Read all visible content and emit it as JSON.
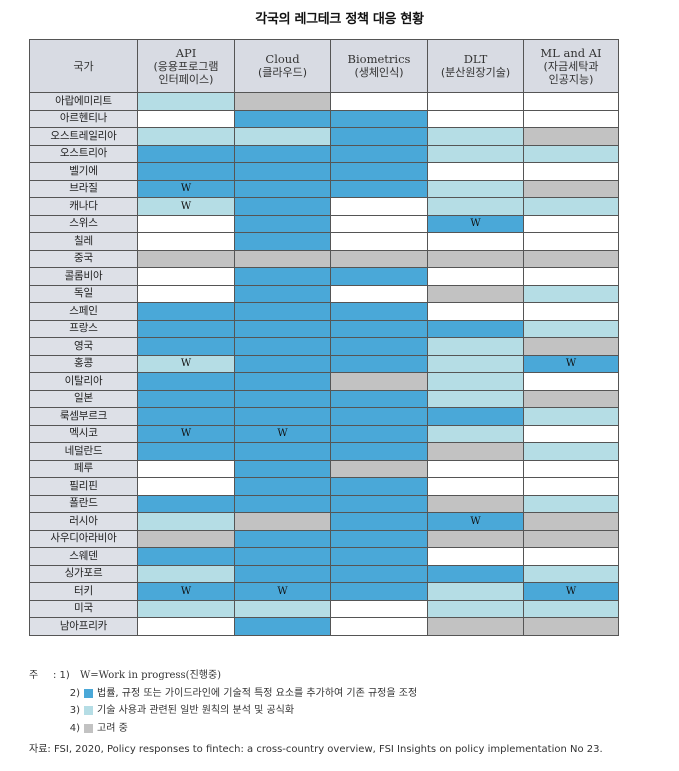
{
  "title": "각국의 레그테크 정책 대응 현황",
  "columns": [
    {
      "en": "",
      "ko": "국가"
    },
    {
      "en": "API",
      "ko": "(응용프로그램\n인터페이스)"
    },
    {
      "en": "Cloud",
      "ko": "(클라우드)"
    },
    {
      "en": "Biometrics",
      "ko": "(생체인식)"
    },
    {
      "en": "DLT",
      "ko": "(분산원장기술)"
    },
    {
      "en": "ML and AI",
      "ko": "(자금세탁과\n인공지능)"
    }
  ],
  "legend_colors": {
    "2": "#4aa8d8",
    "3": "#b5dde5",
    "4": "#c2c2c2",
    "0": "#ffffff"
  },
  "rows": [
    {
      "country": "아랍에미리트",
      "cells": [
        3,
        4,
        0,
        0,
        0
      ],
      "marks": [
        "",
        "",
        "",
        "",
        ""
      ]
    },
    {
      "country": "아르헨티나",
      "cells": [
        0,
        2,
        2,
        0,
        0
      ],
      "marks": [
        "",
        "",
        "",
        "",
        ""
      ]
    },
    {
      "country": "오스트레일리아",
      "cells": [
        3,
        3,
        2,
        3,
        4
      ],
      "marks": [
        "",
        "",
        "",
        "",
        ""
      ]
    },
    {
      "country": "오스트리아",
      "cells": [
        2,
        2,
        2,
        3,
        3
      ],
      "marks": [
        "",
        "",
        "",
        "",
        ""
      ]
    },
    {
      "country": "벨기에",
      "cells": [
        2,
        2,
        2,
        0,
        0
      ],
      "marks": [
        "",
        "",
        "",
        "",
        ""
      ]
    },
    {
      "country": "브라질",
      "cells": [
        2,
        2,
        2,
        3,
        4
      ],
      "marks": [
        "W",
        "",
        "",
        "",
        ""
      ]
    },
    {
      "country": "캐나다",
      "cells": [
        3,
        2,
        0,
        3,
        3
      ],
      "marks": [
        "W",
        "",
        "",
        "",
        ""
      ]
    },
    {
      "country": "스위스",
      "cells": [
        0,
        2,
        0,
        2,
        0
      ],
      "marks": [
        "",
        "",
        "",
        "W",
        ""
      ]
    },
    {
      "country": "칠레",
      "cells": [
        0,
        2,
        0,
        0,
        0
      ],
      "marks": [
        "",
        "",
        "",
        "",
        ""
      ]
    },
    {
      "country": "중국",
      "cells": [
        4,
        4,
        4,
        4,
        4
      ],
      "marks": [
        "",
        "",
        "",
        "",
        ""
      ]
    },
    {
      "country": "콜롬비아",
      "cells": [
        0,
        2,
        2,
        0,
        0
      ],
      "marks": [
        "",
        "",
        "",
        "",
        ""
      ]
    },
    {
      "country": "독일",
      "cells": [
        0,
        2,
        0,
        4,
        3
      ],
      "marks": [
        "",
        "",
        "",
        "",
        ""
      ]
    },
    {
      "country": "스페인",
      "cells": [
        2,
        2,
        2,
        0,
        0
      ],
      "marks": [
        "",
        "",
        "",
        "",
        ""
      ]
    },
    {
      "country": "프랑스",
      "cells": [
        2,
        2,
        2,
        2,
        3
      ],
      "marks": [
        "",
        "",
        "",
        "",
        ""
      ]
    },
    {
      "country": "영국",
      "cells": [
        2,
        2,
        2,
        3,
        4
      ],
      "marks": [
        "",
        "",
        "",
        "",
        ""
      ]
    },
    {
      "country": "홍콩",
      "cells": [
        3,
        2,
        2,
        3,
        2
      ],
      "marks": [
        "W",
        "",
        "",
        "",
        "W"
      ]
    },
    {
      "country": "이탈리아",
      "cells": [
        2,
        2,
        4,
        3,
        0
      ],
      "marks": [
        "",
        "",
        "",
        "",
        ""
      ]
    },
    {
      "country": "일본",
      "cells": [
        2,
        2,
        2,
        3,
        4
      ],
      "marks": [
        "",
        "",
        "",
        "",
        ""
      ]
    },
    {
      "country": "룩셈부르크",
      "cells": [
        2,
        2,
        2,
        2,
        3
      ],
      "marks": [
        "",
        "",
        "",
        "",
        ""
      ]
    },
    {
      "country": "멕시코",
      "cells": [
        2,
        2,
        2,
        3,
        0
      ],
      "marks": [
        "W",
        "W",
        "",
        "",
        ""
      ]
    },
    {
      "country": "네덜란드",
      "cells": [
        2,
        2,
        2,
        4,
        3
      ],
      "marks": [
        "",
        "",
        "",
        "",
        ""
      ]
    },
    {
      "country": "페루",
      "cells": [
        0,
        2,
        4,
        0,
        0
      ],
      "marks": [
        "",
        "",
        "",
        "",
        ""
      ]
    },
    {
      "country": "필리핀",
      "cells": [
        0,
        2,
        2,
        0,
        0
      ],
      "marks": [
        "",
        "",
        "",
        "",
        ""
      ]
    },
    {
      "country": "폴란드",
      "cells": [
        2,
        2,
        2,
        4,
        3
      ],
      "marks": [
        "",
        "",
        "",
        "",
        ""
      ]
    },
    {
      "country": "러시아",
      "cells": [
        3,
        4,
        2,
        2,
        4
      ],
      "marks": [
        "",
        "",
        "",
        "W",
        ""
      ]
    },
    {
      "country": "사우디아라비아",
      "cells": [
        4,
        2,
        2,
        4,
        4
      ],
      "marks": [
        "",
        "",
        "",
        "",
        ""
      ]
    },
    {
      "country": "스웨덴",
      "cells": [
        2,
        2,
        2,
        0,
        0
      ],
      "marks": [
        "",
        "",
        "",
        "",
        ""
      ]
    },
    {
      "country": "싱가포르",
      "cells": [
        3,
        2,
        2,
        2,
        3
      ],
      "marks": [
        "",
        "",
        "",
        "",
        ""
      ]
    },
    {
      "country": "터키",
      "cells": [
        2,
        2,
        2,
        3,
        2
      ],
      "marks": [
        "W",
        "W",
        "",
        "",
        "W"
      ]
    },
    {
      "country": "미국",
      "cells": [
        3,
        3,
        0,
        3,
        3
      ],
      "marks": [
        "",
        "",
        "",
        "",
        ""
      ]
    },
    {
      "country": "남아프리카",
      "cells": [
        0,
        2,
        0,
        4,
        4
      ],
      "marks": [
        "",
        "",
        "",
        "",
        ""
      ]
    }
  ],
  "notes": {
    "prefix": "주",
    "n1_num": ": 1)",
    "n1": "W=Work in progress(진행중)",
    "n2_num": "2)",
    "n2": "법률, 규정 또는 가이드라인에 기술적 특정 요소를 추가하여 기존 규정을 조정",
    "n3_num": "3)",
    "n3": "기술 사용과 관련된 일반 원칙의 분석 및 공식화",
    "n4_num": "4)",
    "n4": "고려 중"
  },
  "source": "자료: FSI, 2020, Policy responses to fintech: a cross-country overview, FSI Insights on policy implementation No 23."
}
